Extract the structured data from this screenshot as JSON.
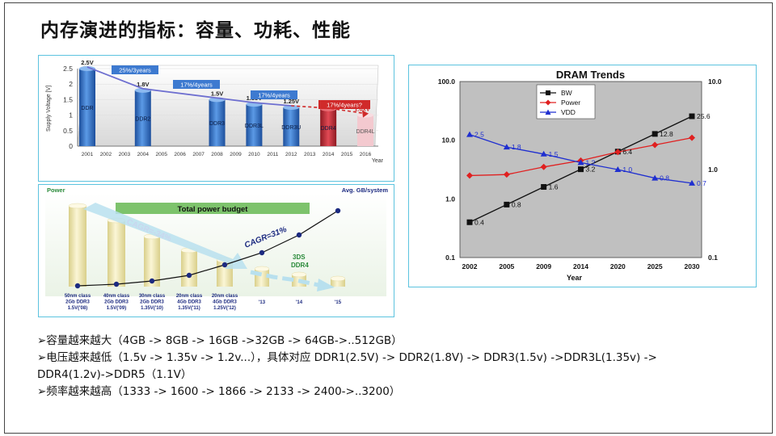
{
  "title": "内存演进的指标：容量、功耗、性能",
  "voltage_chart": {
    "y_axis_label": "Supply Voltage [V]",
    "y_ticks": [
      "2.5",
      "2",
      "1.5",
      "1",
      "0.5",
      "0"
    ],
    "x_axis_label": "Year",
    "years": [
      "2001",
      "2002",
      "2003",
      "2004",
      "2005",
      "2006",
      "2007",
      "2008",
      "2009",
      "2010",
      "2011",
      "2012",
      "2013",
      "2014",
      "2015",
      "2016"
    ],
    "bars": [
      {
        "label": "DDR",
        "voltage_text": "2.5V",
        "voltage": 2.5,
        "year": "2001"
      },
      {
        "label": "DDR2",
        "voltage_text": "1.8V",
        "voltage": 1.8,
        "year": "2004"
      },
      {
        "label": "DDR3",
        "voltage_text": "1.5V",
        "voltage": 1.5,
        "year": "2008"
      },
      {
        "label": "DDR3L",
        "voltage_text": "1.35V",
        "voltage": 1.35,
        "year": "2010"
      },
      {
        "label": "DDR3U",
        "voltage_text": "1.25V",
        "voltage": 1.25,
        "year": "2012"
      },
      {
        "label": "DDR4",
        "voltage_text": "1.2V",
        "voltage": 1.2,
        "year": "2014"
      },
      {
        "label": "DDR4L",
        "voltage_text": "1.0xV",
        "voltage": 1.0,
        "year": "2016"
      }
    ],
    "rate_labels": [
      "25%/3years",
      "17%/4years",
      "17%/4years",
      "17%/4years?"
    ],
    "colors": {
      "bar": "#3a78c8",
      "bar_red": "#c8323c",
      "bar_pink": "#f3c9cf",
      "trend": "#6e6fd0",
      "trend_red": "#d02a2a",
      "box": "#3d7ad0"
    }
  },
  "power_chart": {
    "left_label": "Power",
    "right_label": "Avg. GB/system",
    "banner": "Total power budget",
    "cagr_down": "CAGR=-34%",
    "cagr_up": "CAGR=31%",
    "tech_label_1": "3DS",
    "tech_label_2": "DDR4",
    "bar_labels": [
      [
        "50nm class",
        "2Gb DDR3",
        "1.5V('08)"
      ],
      [
        "40nm class",
        "2Gb DDR3",
        "1.5V('09)"
      ],
      [
        "30nm class",
        "2Gb DDR3",
        "1.35V('10)"
      ],
      [
        "20nm class",
        "4Gb DDR3",
        "1.35V('11)"
      ],
      [
        "20nm class",
        "4Gb DDR3",
        "1.25V('12)"
      ],
      [
        "'13"
      ],
      [
        "'14"
      ],
      [
        "'15"
      ]
    ],
    "colors": {
      "bar": "#f0e6b0",
      "line": "#1c2a80",
      "arrow": "#b8e0ee",
      "green": "#2a8a3a"
    }
  },
  "dram_chart": {
    "title": "DRAM Trends",
    "x_axis_label": "Year",
    "categories": [
      "2002",
      "2005",
      "2009",
      "2014",
      "2020",
      "2025",
      "2030"
    ],
    "left_ticks": [
      "100.0",
      "10.0",
      "1.0",
      "0.1"
    ],
    "right_ticks": [
      "10.0",
      "1.0",
      "0.1"
    ],
    "legend": [
      "BW",
      "Power",
      "VDD"
    ],
    "bw_labels": [
      "0.4",
      "0.8",
      "1.6",
      "3.2",
      "6.4",
      "12.8",
      "25.6"
    ],
    "vdd_labels": [
      "2.5",
      "1.8",
      "1.5",
      "1.2",
      "1.0",
      "0.8",
      "0.7"
    ],
    "colors": {
      "bw": "#111111",
      "power": "#e02020",
      "vdd": "#1f2fd0",
      "plot_bg": "#c0c0c0"
    }
  },
  "chart_data": [
    {
      "type": "bar",
      "title": "",
      "ylabel": "Supply Voltage [V]",
      "xlabel": "Year",
      "categories": [
        "DDR",
        "DDR2",
        "DDR3",
        "DDR3L",
        "DDR3U",
        "DDR4",
        "DDR4L"
      ],
      "values": [
        2.5,
        1.8,
        1.5,
        1.35,
        1.25,
        1.2,
        1.0
      ],
      "ylim": [
        0,
        2.5
      ]
    },
    {
      "type": "line",
      "title": "DRAM Trends",
      "xlabel": "Year",
      "x": [
        "2002",
        "2005",
        "2009",
        "2014",
        "2020",
        "2025",
        "2030"
      ],
      "series": [
        {
          "name": "BW",
          "axis": "left",
          "values": [
            0.4,
            0.8,
            1.6,
            3.2,
            6.4,
            12.8,
            25.6
          ]
        },
        {
          "name": "Power",
          "axis": "left",
          "values": [
            2.5,
            2.6,
            3.5,
            4.5,
            6.3,
            8.3,
            11.0
          ]
        },
        {
          "name": "VDD",
          "axis": "right",
          "values": [
            2.5,
            1.8,
            1.5,
            1.2,
            1.0,
            0.8,
            0.7
          ]
        }
      ],
      "yscale": "log",
      "ylim_left": [
        0.1,
        100
      ],
      "ylim_right": [
        0.1,
        10
      ],
      "legend": "top-left"
    }
  ],
  "bullets": [
    "➢容量越来越大（4GB -> 8GB -> 16GB ->32GB -> 64GB->..512GB）",
    "➢电压越来越低（1.5v -> 1.35v -> 1.2v...），具体对应 DDR1(2.5V) ->  DDR2(1.8V) -> DDR3(1.5v) ->DDR3L(1.35v) ->",
    "DDR4(1.2v)->DDR5（1.1V）",
    "➢频率越来越高（1333  -> 1600 -> 1866 -> 2133 -> 2400->..3200）"
  ]
}
